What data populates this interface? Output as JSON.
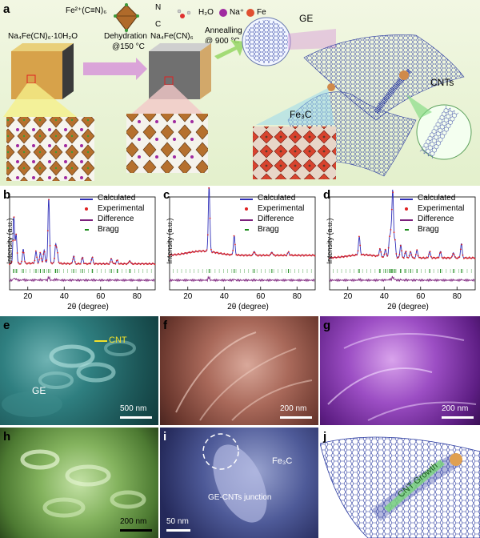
{
  "panel_a": {
    "label": "a",
    "legend": {
      "fe_formula": "Fe²⁺(C≡N)₆",
      "n_label": "N",
      "c_label": "C",
      "h2o": "H₂O",
      "na": "Na⁺",
      "fe": "Fe"
    },
    "compound_left": "Na₄Fe(CN)₆·10H₂O",
    "step1": "Dehydration",
    "step1_temp": "@150 °C",
    "compound_mid": "Na₄Fe(CN)₆",
    "step2": "Annealling",
    "step2_temp": "@ 900 °C",
    "ge_label": "GE",
    "cnts_label": "CNTs",
    "fe3c_label": "Fe₃C"
  },
  "charts": [
    {
      "label": "b",
      "legend": [
        "Calculated",
        "Experimental",
        "Difference",
        "Bragg"
      ]
    },
    {
      "label": "c",
      "legend": [
        "Calculated",
        "Experimental",
        "Difference",
        "Bragg"
      ]
    },
    {
      "label": "d",
      "legend": [
        "Calculated",
        "Experimental",
        "Difference",
        "Bragg"
      ]
    }
  ],
  "chart_data": [
    {
      "type": "line",
      "ylabel": "Intensity (a.u.)",
      "xlabel": "2θ (degree)",
      "xlim": [
        10,
        90
      ],
      "xticks": [
        20,
        40,
        60,
        80
      ],
      "series": [
        {
          "name": "Calculated",
          "color": "#2e2eb8"
        },
        {
          "name": "Experimental",
          "color": "#e02020"
        },
        {
          "name": "Difference",
          "color": "#7b1f7b"
        },
        {
          "name": "Bragg",
          "color": "#1a8a1a"
        }
      ],
      "peaks": [
        [
          12.3,
          0.72
        ],
        [
          13.6,
          0.45
        ],
        [
          17.5,
          0.22
        ],
        [
          24.5,
          0.18
        ],
        [
          26.9,
          0.16
        ],
        [
          29.0,
          0.2
        ],
        [
          31.5,
          1.0
        ],
        [
          35.3,
          0.28
        ],
        [
          36.2,
          0.16
        ],
        [
          45.2,
          0.12
        ],
        [
          50.0,
          0.1
        ],
        [
          55.4,
          0.1
        ],
        [
          65.9,
          0.08
        ],
        [
          69.1,
          0.06
        ],
        [
          76.0,
          0.05
        ]
      ],
      "baseline": 0.03
    },
    {
      "type": "line",
      "ylabel": "Intensity (a.u.)",
      "xlabel": "2θ (degree)",
      "xlim": [
        10,
        90
      ],
      "xticks": [
        20,
        40,
        60,
        80
      ],
      "series": [
        {
          "name": "Calculated",
          "color": "#2e2eb8"
        },
        {
          "name": "Experimental",
          "color": "#e02020"
        },
        {
          "name": "Difference",
          "color": "#7b1f7b"
        },
        {
          "name": "Bragg",
          "color": "#1a8a1a"
        }
      ],
      "peaks": [
        [
          31.7,
          1.0
        ],
        [
          45.5,
          0.3
        ],
        [
          56.5,
          0.06
        ],
        [
          66.2,
          0.05
        ],
        [
          75.3,
          0.05
        ]
      ],
      "baseline": 0.16
    },
    {
      "type": "line",
      "ylabel": "Intensity (a.u.)",
      "xlabel": "2θ (degree)",
      "xlim": [
        10,
        90
      ],
      "xticks": [
        20,
        40,
        60,
        80
      ],
      "series": [
        {
          "name": "Calculated",
          "color": "#2e2eb8"
        },
        {
          "name": "Experimental",
          "color": "#e02020"
        },
        {
          "name": "Difference",
          "color": "#7b1f7b"
        },
        {
          "name": "Bragg",
          "color": "#1a8a1a"
        }
      ],
      "peaks": [
        [
          26.3,
          0.28
        ],
        [
          37.7,
          0.12
        ],
        [
          40.7,
          0.12
        ],
        [
          42.9,
          0.28
        ],
        [
          43.8,
          0.35
        ],
        [
          44.7,
          1.0
        ],
        [
          45.9,
          0.26
        ],
        [
          49.1,
          0.2
        ],
        [
          51.8,
          0.1
        ],
        [
          54.5,
          0.1
        ],
        [
          58.0,
          0.12
        ],
        [
          65.0,
          0.1
        ],
        [
          70.9,
          0.1
        ],
        [
          78.0,
          0.08
        ],
        [
          82.4,
          0.22
        ]
      ],
      "baseline": 0.12
    }
  ],
  "sem": [
    {
      "label": "e",
      "scale": "500 nm",
      "annotations": [
        "CNT",
        "GE"
      ]
    },
    {
      "label": "f",
      "scale": "200 nm"
    },
    {
      "label": "g",
      "scale": "200 nm"
    },
    {
      "label": "h",
      "scale": "200 nm"
    },
    {
      "label": "i",
      "scale": "50 nm",
      "annotations": [
        "Fe₃C",
        "GE-CNTs junction"
      ]
    },
    {
      "label": "j",
      "annotations": [
        "CNT Growth"
      ]
    }
  ]
}
